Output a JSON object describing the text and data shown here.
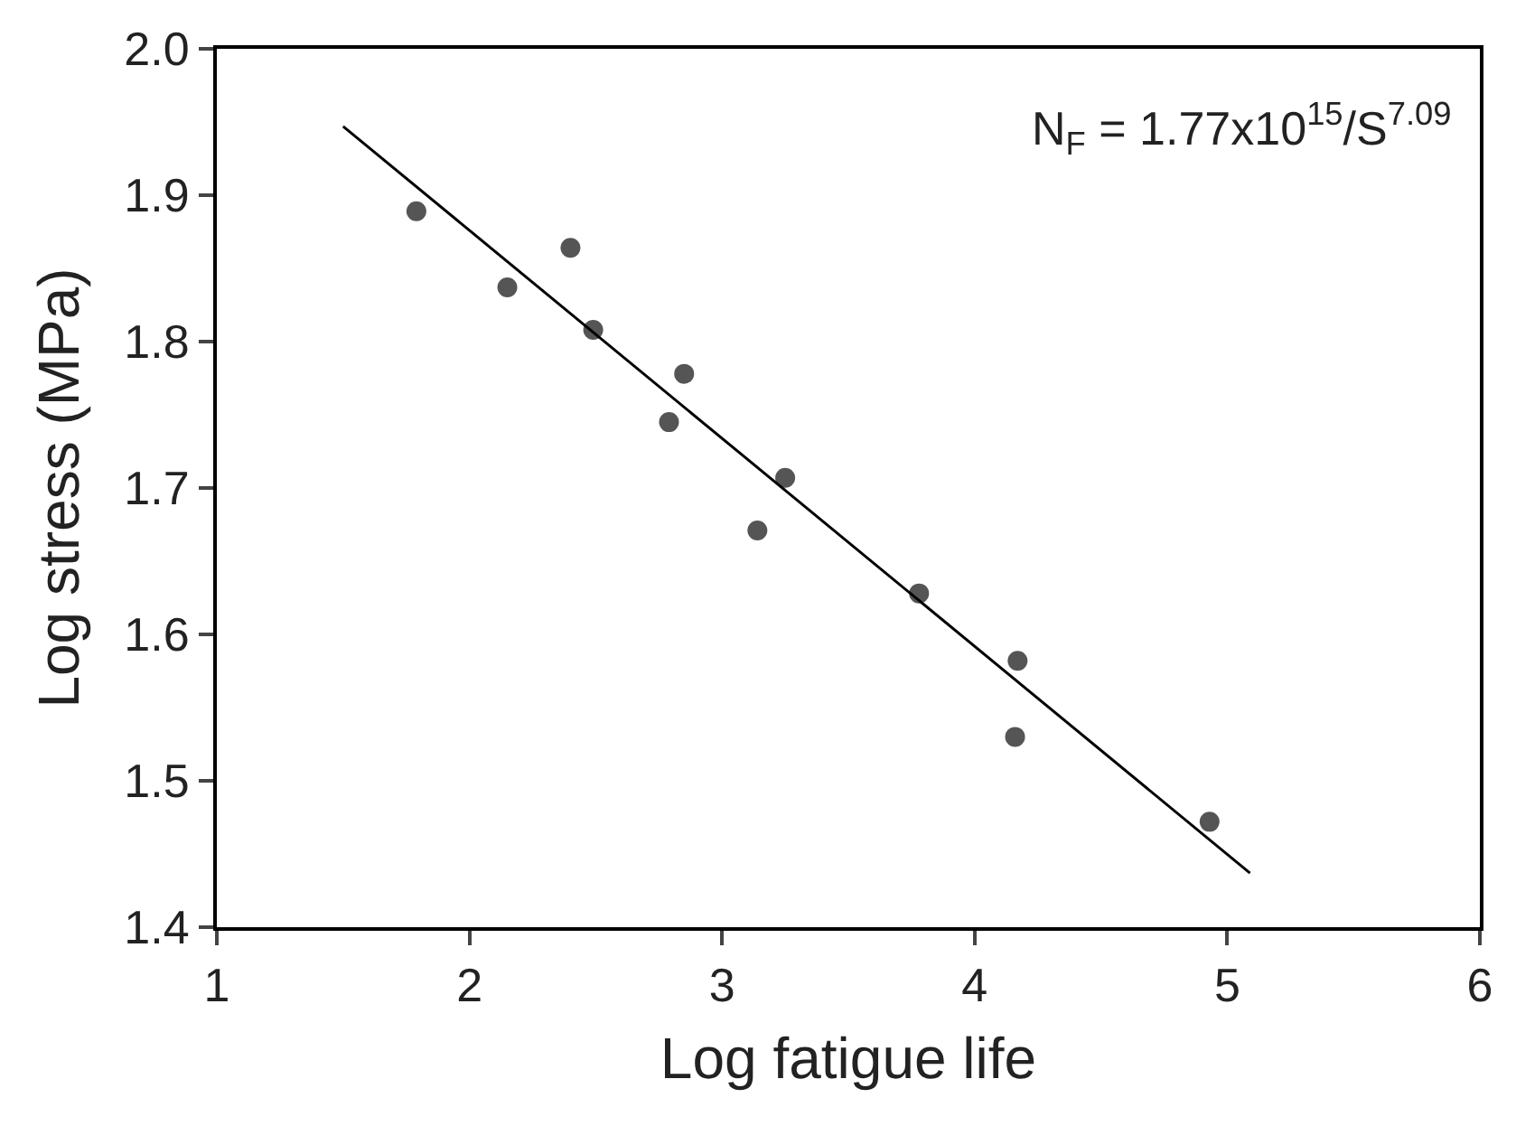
{
  "chart_data": {
    "type": "scatter",
    "xlabel": "Log fatigue life",
    "ylabel": "Log stress (MPa)",
    "x": [
      1.79,
      2.15,
      2.4,
      2.49,
      2.85,
      2.79,
      3.25,
      3.14,
      3.78,
      4.17,
      4.16,
      4.93
    ],
    "series": [
      {
        "color": "#555555",
        "marker": "circle",
        "values": [
          1.889,
          1.837,
          1.864,
          1.808,
          1.778,
          1.745,
          1.707,
          1.671,
          1.628,
          1.582,
          1.53,
          1.472
        ]
      },
      {
        "type": "line",
        "color": "#000000",
        "line_style": "solid",
        "x": [
          1.5,
          5.09
        ],
        "values": [
          1.947,
          1.437
        ]
      }
    ],
    "annotations": [
      "N$_{F}$ = 1.77x10$^{15}$/S$^{7.09}$"
    ],
    "xlim": [
      1,
      6
    ],
    "xticks": [
      1,
      2,
      3,
      4,
      5,
      6
    ],
    "ylim": [
      1.4,
      2.0
    ],
    "yticks": [
      {
        "value": 1.4,
        "label": "1.4"
      },
      {
        "value": 1.5,
        "label": "1.5"
      },
      {
        "value": 1.6,
        "label": "1.6"
      },
      {
        "value": 1.7,
        "label": "1.7"
      },
      {
        "value": 1.8,
        "label": "1.8"
      },
      {
        "value": 1.9,
        "label": "1.9"
      },
      {
        "value": 2.0,
        "label": "2.0"
      }
    ]
  }
}
